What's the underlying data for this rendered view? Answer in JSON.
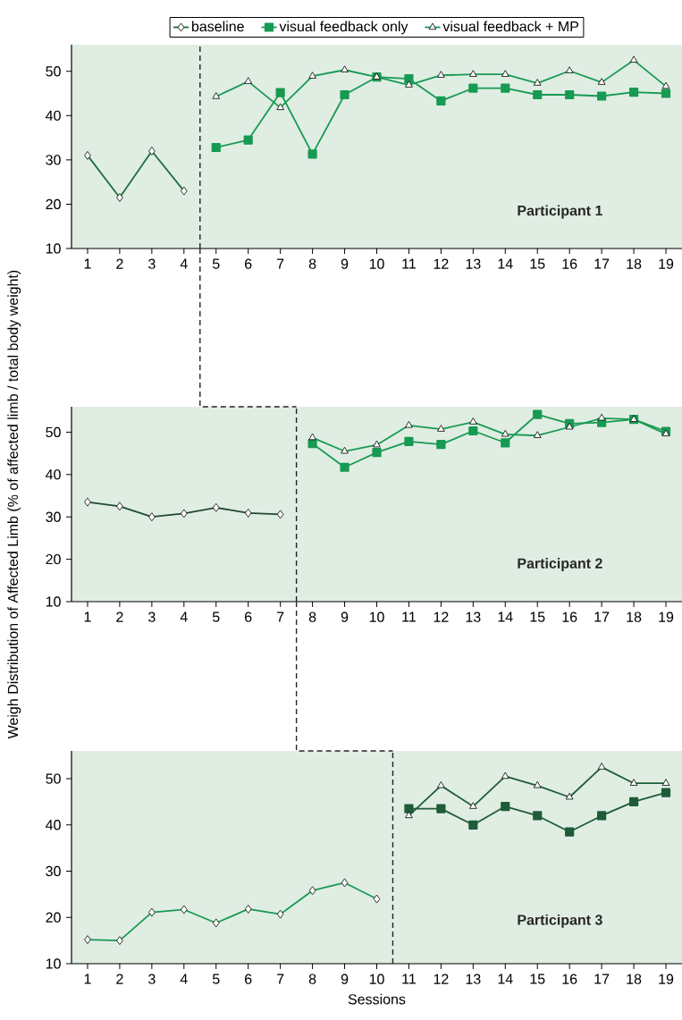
{
  "chart_data": [
    {
      "type": "line",
      "xlim": [
        0.5,
        19.5
      ],
      "xticks": [
        1,
        2,
        3,
        4,
        5,
        6,
        7,
        8,
        9,
        10,
        11,
        12,
        13,
        14,
        15,
        16,
        17,
        18,
        19
      ],
      "ylim": [
        10,
        56
      ],
      "yticks": [
        10,
        20,
        30,
        40,
        50
      ],
      "legend": "top",
      "annotations": [
        "Participant 1"
      ],
      "ref_lines": [
        {
          "axis": "x",
          "value": 4.5,
          "color": "#222222",
          "line_style": "dashed"
        }
      ],
      "series": [
        {
          "name": "baseline",
          "color": "#1f6e3e",
          "marker": "diamond",
          "x": [
            1,
            2,
            3,
            4
          ],
          "values": [
            31,
            21.5,
            32,
            23
          ]
        },
        {
          "name": "visual feedback only",
          "color": "#179a52",
          "marker": "square",
          "x": [
            5,
            6,
            7,
            8,
            9,
            10,
            11,
            12,
            13,
            14,
            15,
            16,
            17,
            18,
            19
          ],
          "values": [
            32.8,
            34.5,
            45.2,
            31.3,
            44.7,
            48.7,
            48.3,
            43.3,
            46.2,
            46.2,
            44.7,
            44.7,
            44.4,
            45.3,
            45
          ]
        },
        {
          "name": "visual feedback + MP",
          "color": "#179a52",
          "marker": "triangle",
          "x": [
            5,
            6,
            7,
            8,
            9,
            10,
            11,
            12,
            13,
            14,
            15,
            16,
            17,
            18,
            19
          ],
          "values": [
            44.3,
            47.7,
            41.8,
            48.9,
            50.3,
            48.7,
            46.9,
            49.1,
            49.3,
            49.3,
            47.3,
            50.1,
            47.5,
            52.5,
            46.6
          ]
        }
      ]
    },
    {
      "type": "line",
      "xlim": [
        0.5,
        19.5
      ],
      "xticks": [
        1,
        2,
        3,
        4,
        5,
        6,
        7,
        8,
        9,
        10,
        11,
        12,
        13,
        14,
        15,
        16,
        17,
        18,
        19
      ],
      "ylim": [
        10,
        56
      ],
      "yticks": [
        10,
        20,
        30,
        40,
        50
      ],
      "ylabel": "Weigh Distribution of Affected Limb (% of affected limb / total body weight)",
      "annotations": [
        "Participant 2"
      ],
      "ref_lines": [
        {
          "axis": "x",
          "value": 7.5,
          "color": "#222222",
          "line_style": "dashed"
        }
      ],
      "series": [
        {
          "color": "#1e4a30",
          "marker": "diamond",
          "x": [
            1,
            2,
            3,
            4,
            5,
            6,
            7
          ],
          "values": [
            33.5,
            32.5,
            30,
            30.8,
            32.2,
            30.9,
            30.6
          ]
        },
        {
          "color": "#179a52",
          "marker": "square",
          "x": [
            8,
            9,
            10,
            11,
            12,
            13,
            14,
            15,
            16,
            17,
            18,
            19
          ],
          "values": [
            47.3,
            41.7,
            45.2,
            47.8,
            47.1,
            50.3,
            47.5,
            54.2,
            52,
            52.3,
            53,
            50.2
          ]
        },
        {
          "color": "#179a52",
          "marker": "triangle",
          "x": [
            8,
            9,
            10,
            11,
            12,
            13,
            14,
            15,
            16,
            17,
            18,
            19
          ],
          "values": [
            48.7,
            45.5,
            47,
            51.6,
            50.7,
            52.4,
            49.5,
            49.2,
            51.2,
            53.3,
            53,
            49.6
          ]
        }
      ]
    },
    {
      "type": "line",
      "xlim": [
        0.5,
        19.5
      ],
      "xticks": [
        1,
        2,
        3,
        4,
        5,
        6,
        7,
        8,
        9,
        10,
        11,
        12,
        13,
        14,
        15,
        16,
        17,
        18,
        19
      ],
      "ylim": [
        10,
        56
      ],
      "yticks": [
        10,
        20,
        30,
        40,
        50
      ],
      "xlabel": "Sessions",
      "annotations": [
        "Participant 3"
      ],
      "ref_lines": [
        {
          "axis": "x",
          "value": 10.5,
          "color": "#222222",
          "line_style": "dashed"
        }
      ],
      "series": [
        {
          "color": "#179a52",
          "marker": "diamond",
          "x": [
            1,
            2,
            3,
            4,
            5,
            6,
            7,
            8,
            9,
            10
          ],
          "values": [
            15.2,
            15,
            21.1,
            21.7,
            18.8,
            21.8,
            20.7,
            25.8,
            27.5,
            24
          ]
        },
        {
          "color": "#1e5c38",
          "marker": "square",
          "x": [
            11,
            12,
            13,
            14,
            15,
            16,
            17,
            18,
            19
          ],
          "values": [
            43.5,
            43.5,
            40,
            44,
            42,
            38.5,
            42,
            45,
            47
          ]
        },
        {
          "color": "#1e5c38",
          "marker": "triangle",
          "x": [
            11,
            12,
            13,
            14,
            15,
            16,
            17,
            18,
            19
          ],
          "values": [
            42,
            48.5,
            44,
            50.5,
            48.5,
            46,
            52.5,
            49,
            49
          ]
        }
      ]
    }
  ]
}
